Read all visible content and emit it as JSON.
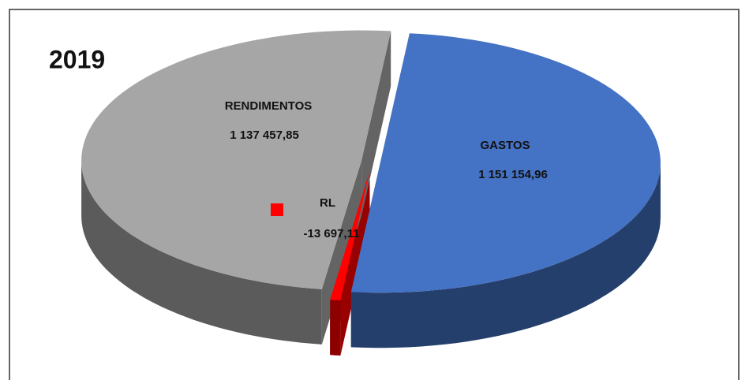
{
  "chart_data": {
    "type": "pie3d",
    "title": "2019",
    "categories": [
      "GASTOS",
      "RL",
      "RENDIMENTOS"
    ],
    "values": [
      1151154.96,
      -13697.11,
      1137457.85
    ],
    "value_labels": [
      "1 151 154,96",
      "-13 697,11",
      "1 137 457,85"
    ],
    "colors": [
      "#4472c4",
      "#ff0000",
      "#a6a6a6"
    ]
  }
}
